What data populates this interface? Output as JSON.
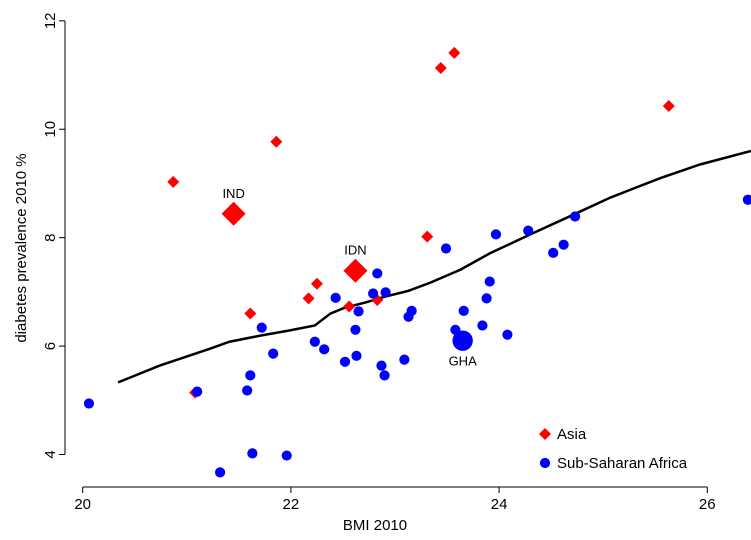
{
  "chart_data": {
    "type": "scatter",
    "xlabel": "BMI 2010",
    "ylabel": "diabetes prevalence 2010 %",
    "xlim": [
      19.83,
      26.42
    ],
    "ylim": [
      3.4,
      12.2
    ],
    "xticks": [
      20,
      22,
      24,
      26
    ],
    "yticks": [
      4,
      6,
      8,
      10,
      12
    ],
    "legend": "bottom-right",
    "series": [
      {
        "name": "Asia",
        "color": "#ff0000",
        "marker": "diamond",
        "x": [
          20.87,
          21.45,
          21.86,
          21.08,
          21.61,
          22.17,
          22.25,
          22.62,
          22.56,
          22.83,
          23.31,
          23.44,
          23.57,
          25.63
        ],
        "values": [
          9.03,
          8.44,
          9.77,
          5.14,
          6.6,
          6.88,
          7.15,
          7.39,
          6.73,
          6.85,
          8.02,
          11.13,
          11.41,
          10.43
        ],
        "labels": [
          null,
          "IND",
          null,
          null,
          null,
          null,
          null,
          "IDN",
          null,
          null,
          null,
          null,
          null,
          null
        ]
      },
      {
        "name": "Sub-Saharan Africa",
        "color": "#0000ff",
        "marker": "circle",
        "x": [
          20.06,
          21.1,
          21.32,
          21.63,
          21.96,
          21.58,
          21.61,
          21.72,
          21.83,
          22.23,
          22.32,
          22.43,
          22.52,
          22.62,
          22.63,
          22.65,
          22.79,
          22.83,
          22.91,
          22.87,
          22.9,
          23.09,
          23.13,
          23.16,
          23.49,
          23.58,
          23.66,
          23.65,
          23.84,
          23.88,
          23.91,
          23.97,
          24.08,
          24.28,
          24.52,
          24.62,
          24.73,
          26.39
        ],
        "values": [
          4.94,
          5.16,
          3.67,
          4.02,
          3.98,
          5.18,
          5.46,
          6.34,
          5.86,
          6.08,
          5.94,
          6.89,
          5.71,
          6.3,
          5.82,
          6.64,
          6.97,
          7.34,
          6.99,
          5.64,
          5.46,
          5.75,
          6.54,
          6.65,
          7.8,
          6.3,
          6.65,
          6.1,
          6.38,
          6.88,
          7.19,
          8.06,
          6.21,
          8.13,
          7.72,
          7.87,
          8.39,
          8.7
        ],
        "labels": [
          null,
          null,
          null,
          null,
          null,
          null,
          null,
          null,
          null,
          null,
          null,
          null,
          null,
          null,
          null,
          null,
          null,
          null,
          null,
          null,
          null,
          null,
          null,
          null,
          null,
          null,
          null,
          "GHA",
          null,
          null,
          null,
          null,
          null,
          null,
          null,
          null,
          null,
          null
        ]
      }
    ],
    "fit_line": {
      "color": "#000000",
      "x": [
        20.34,
        20.74,
        21.22,
        21.41,
        21.7,
        21.99,
        22.23,
        22.38,
        22.52,
        22.71,
        22.9,
        23.13,
        23.34,
        23.63,
        23.91,
        24.3,
        24.63,
        25.07,
        25.55,
        25.93,
        26.42
      ],
      "values": [
        5.33,
        5.64,
        5.95,
        6.08,
        6.19,
        6.29,
        6.38,
        6.6,
        6.71,
        6.8,
        6.91,
        7.02,
        7.17,
        7.41,
        7.71,
        8.06,
        8.35,
        8.74,
        9.1,
        9.35,
        9.6
      ]
    }
  }
}
